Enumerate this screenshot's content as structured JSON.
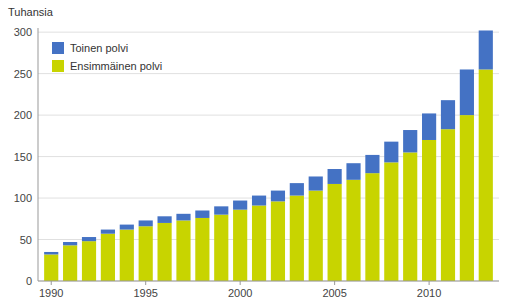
{
  "chart_data": {
    "type": "bar",
    "stacked": true,
    "ylabel": "Tuhansia",
    "x": [
      1990,
      1991,
      1992,
      1993,
      1994,
      1995,
      1996,
      1997,
      1998,
      1999,
      2000,
      2001,
      2002,
      2003,
      2004,
      2005,
      2006,
      2007,
      2008,
      2009,
      2010,
      2011,
      2012,
      2013
    ],
    "series": [
      {
        "name": "Ensimmäinen polvi",
        "color": "#c8d400",
        "values": [
          32,
          43,
          48,
          57,
          62,
          66,
          70,
          73,
          76,
          80,
          86,
          91,
          96,
          103,
          109,
          117,
          122,
          130,
          143,
          155,
          170,
          183,
          200,
          255
        ]
      },
      {
        "name": "Toinen polvi",
        "color": "#4472c4",
        "values": [
          3,
          4,
          5,
          5,
          6,
          7,
          8,
          8,
          9,
          10,
          11,
          12,
          13,
          15,
          17,
          18,
          20,
          22,
          25,
          27,
          32,
          35,
          55,
          47
        ]
      }
    ],
    "xlim": [
      1989.3,
      2013.7
    ],
    "xticks": [
      1990,
      1995,
      2000,
      2005,
      2010
    ],
    "ylim": [
      0,
      305
    ],
    "yticks": [
      0,
      50,
      100,
      150,
      200,
      250,
      300
    ],
    "grid": true,
    "legend": "upper left"
  }
}
